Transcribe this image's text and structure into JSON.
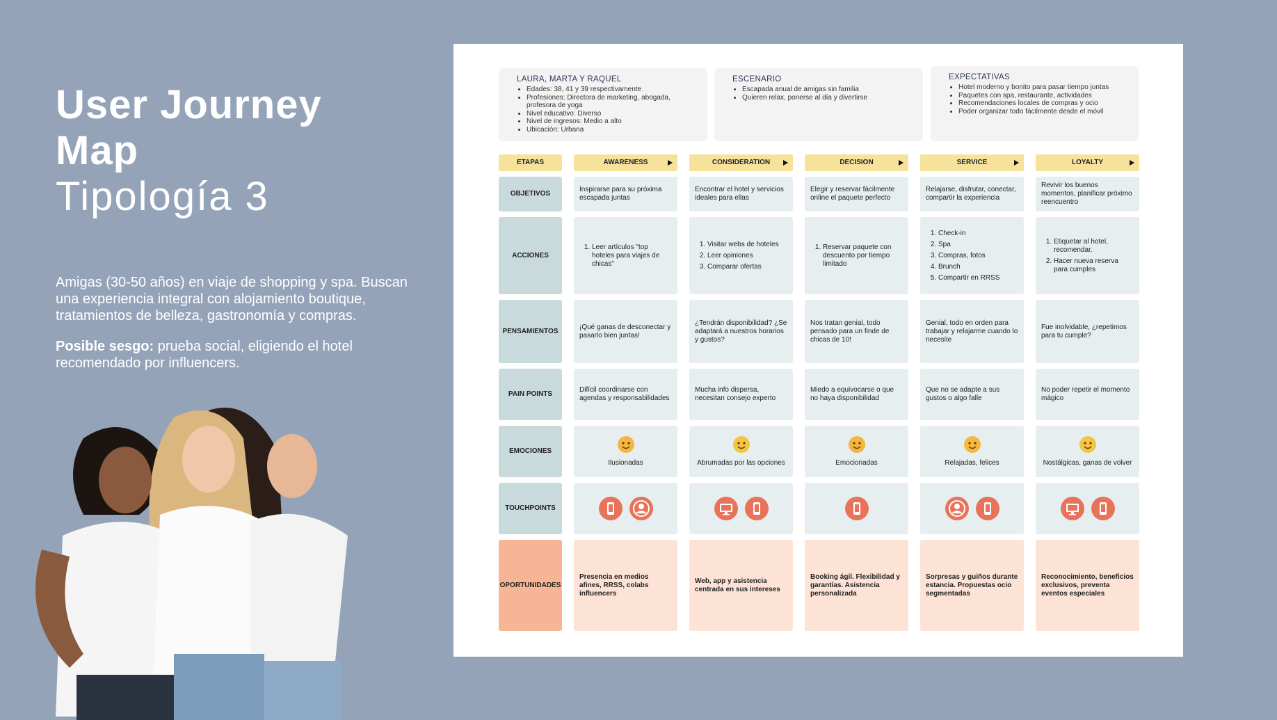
{
  "header": {
    "title": "User Journey Map",
    "subtitle": "Tipología 3",
    "description": "Amigas (30-50 años) en viaje de shopping y spa. Buscan una experiencia integral con alojamiento boutique, tratamientos de belleza, gastronomía y compras.",
    "bias_label": "Posible sesgo:",
    "bias_text": " prueba social, eligiendo el hotel recomendado por influencers."
  },
  "profile": {
    "title": "LAURA, MARTA Y RAQUEL",
    "items": [
      "Edades: 38, 41 y 39 respectivamente",
      "Profesiones: Directora de marketing, abogada, profesora de yoga",
      "Nivel educativo: Diverso",
      "Nivel de ingresos: Medio a alto",
      "Ubicación: Urbana"
    ]
  },
  "scenario": {
    "title": "ESCENARIO",
    "items": [
      "Escapada anual de amigas sin familia",
      "Quieren relax, ponerse al día y divertirse"
    ]
  },
  "expectations": {
    "title": "EXPECTATIVAS",
    "items": [
      "Hotel moderno y bonito para pasar tiempo juntas",
      "Paquetes con spa, restaurante, actividades",
      "Recomendaciones locales de compras y ocio",
      "Poder organizar todo fácilmente desde el móvil"
    ]
  },
  "journey": {
    "stages_label": "ETAPAS",
    "stages": [
      "AWARENESS",
      "CONSIDERATION",
      "DECISION",
      "SERVICE",
      "LOYALTY"
    ],
    "rows": [
      {
        "label": "OBJETIVOS",
        "cells": [
          "Inspirarse para su próxima escapada juntas",
          "Encontrar el hotel y servicios ideales para ellas",
          "Elegir y reservar fácilmente online el paquete perfecto",
          "Relajarse, disfrutar, conectar, compartir la experiencia",
          "Revivir los buenos momentos, planificar próximo reencuentro"
        ]
      },
      {
        "label": "ACCIONES",
        "cells": [
          [
            "Leer artículos \"top hoteles para viajes de chicas\""
          ],
          [
            "Visitar webs de hoteles",
            "Leer opiniones",
            "Comparar ofertas"
          ],
          [
            "Reservar paquete con descuento por tiempo limitado"
          ],
          [
            "Check-in",
            "Spa",
            "Compras, fotos",
            "Brunch",
            "Compartir en RRSS"
          ],
          [
            "Etiquetar al hotel, recomendar.",
            "Hacer nueva reserva para cumples"
          ]
        ]
      },
      {
        "label": "PENSAMIENTOS",
        "cells": [
          "¡Qué ganas de desconectar y pasarlo bien juntas!",
          "¿Tendrán disponibilidad? ¿Se adaptará a nuestros horarios y gustos?",
          "Nos tratan genial, todo pensado para un finde de chicas de 10!",
          "Genial, todo en orden para trabajar y relajarme cuando lo necesite",
          "Fue inolvidable, ¿repetimos para tu cumple?"
        ]
      },
      {
        "label": "PAIN POINTS",
        "cells": [
          "Difícil coordinarse con agendas y responsabilidades",
          "Mucha info dispersa, necesitan consejo experto",
          "Miedo a equivocarse o que no haya disponibilidad",
          "Que no se adapte a sus gustos o algo falle",
          "No poder repetir el momento mágico"
        ]
      },
      {
        "label": "EMOCIONES",
        "cells": [
          "Ilusionadas",
          "Abrumadas por las opciones",
          "Emocionadas",
          "Relajadas, felices",
          "Nostálgicas, ganas de volver"
        ]
      },
      {
        "label": "TOUCHPOINTS",
        "cells": []
      },
      {
        "label": "OPORTUNIDADES",
        "cells": [
          "Presencia en medios afines, RRSS, colabs influencers",
          "Web, app y asistencia centrada en sus intereses",
          "Booking ágil. Flexibilidad y garantías. Asistencia personalizada",
          "Sorpresas y guiños durante estancia. Propuestas ocio segmentadas",
          "Reconocimiento, beneficios exclusivos, preventa eventos especiales"
        ]
      }
    ]
  }
}
